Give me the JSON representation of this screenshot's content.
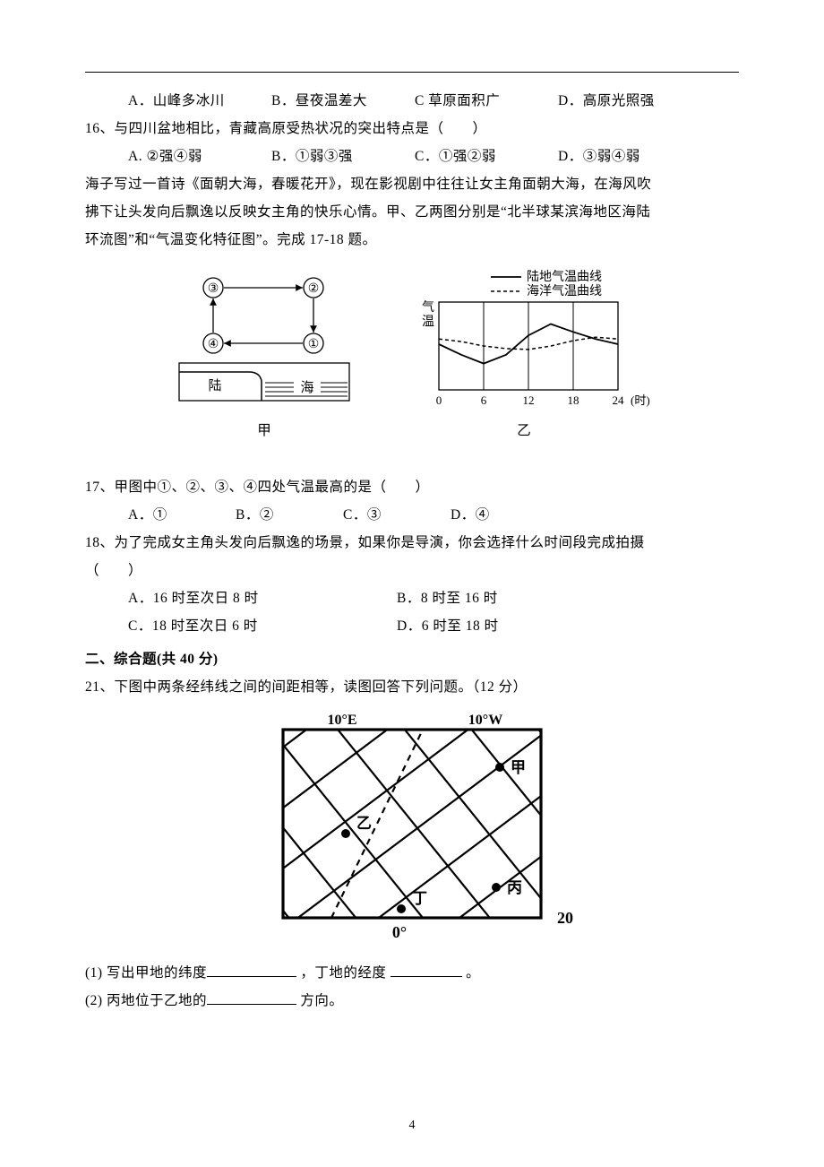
{
  "q15": {
    "opts": {
      "A": "A．山峰多冰川",
      "B": "B．昼夜温差大",
      "C": "C 草原面积广",
      "D": "D．高原光照强"
    }
  },
  "q16": {
    "stem": "16、与四川盆地相比，青藏高原受热状况的突出特点是（　　）",
    "opts": {
      "A": "A. ②强④弱",
      "B": "B．①弱③强",
      "C": "C．①强②弱",
      "D": "D．③弱④弱"
    }
  },
  "passage": {
    "l1": "海子写过一首诗《面朝大海，春暖花开》，现在影视剧中往往让女主角面朝大海，在海风吹",
    "l2": "拂下让头发向后飘逸以反映女主角的快乐心情。甲、乙两图分别是“北半球某滨海地区海陆",
    "l3": "环流图”和“气温变化特征图”。完成 17-18 题。"
  },
  "figJia": {
    "caption": "甲",
    "nodes": {
      "tl": "③",
      "tr": "②",
      "bl": "④",
      "br": "①"
    },
    "land": "陆",
    "sea": "海",
    "colors": {
      "stroke": "#000000",
      "fill": "#ffffff"
    }
  },
  "figYi": {
    "caption": "乙",
    "legend": {
      "land": "陆地气温曲线",
      "sea": "海洋气温曲线"
    },
    "axis": {
      "ylabel_top": "气",
      "ylabel_bottom": "温",
      "xticks": [
        "0",
        "6",
        "12",
        "18",
        "24"
      ],
      "xunit": "(时)"
    },
    "series": {
      "land": {
        "points": [
          [
            0,
            0.52
          ],
          [
            3,
            0.4
          ],
          [
            6,
            0.3
          ],
          [
            9,
            0.4
          ],
          [
            12,
            0.62
          ],
          [
            15,
            0.75
          ],
          [
            18,
            0.66
          ],
          [
            21,
            0.58
          ],
          [
            24,
            0.52
          ]
        ],
        "dash": "0",
        "color": "#000000",
        "width": 1.8
      },
      "sea": {
        "points": [
          [
            0,
            0.58
          ],
          [
            3,
            0.55
          ],
          [
            6,
            0.5
          ],
          [
            9,
            0.47
          ],
          [
            12,
            0.46
          ],
          [
            15,
            0.5
          ],
          [
            18,
            0.56
          ],
          [
            21,
            0.6
          ],
          [
            24,
            0.58
          ]
        ],
        "dash": "4 3",
        "color": "#000000",
        "width": 1.5
      }
    },
    "grid_color": "#000000",
    "xlim": [
      0,
      24
    ]
  },
  "q17": {
    "stem": "17、甲图中①、②、③、④四处气温最高的是（　　）",
    "opts": {
      "A": "A．①",
      "B": "B．②",
      "C": "C．③",
      "D": "D．④"
    }
  },
  "q18": {
    "stem": "18、为了完成女主角头发向后飘逸的场景，如果你是导演，你会选择什么时间段完成拍摄",
    "stem2": "（　　）",
    "opts": {
      "A": "A．16 时至次日 8 时",
      "B": "B．8 时至 16 时",
      "C": "C．18 时至次日 6 时",
      "D": "D．6 时至 18 时"
    }
  },
  "section2": "二、综合题(共 40 分)",
  "q21": {
    "stem": "21、下图中两条经纬线之间的间距相等，读图回答下列问题。（12 分）",
    "sub1_a": "(1) 写出甲地的纬度",
    "sub1_b": " ，丁地的经度 ",
    "sub1_c": " 。",
    "sub2_a": "(2) 丙地位于乙地的",
    "sub2_b": " 方向。"
  },
  "map": {
    "labels": {
      "tl": "10°E",
      "tr": "10°W",
      "bl": "0°",
      "br": "20°",
      "jia": "甲",
      "yi": "乙",
      "bing": "丙",
      "ding": "丁"
    },
    "colors": {
      "stroke": "#000000",
      "bg": "#ffffff",
      "thin": 2.2,
      "thick": 3.2
    }
  },
  "pagenum": "4"
}
